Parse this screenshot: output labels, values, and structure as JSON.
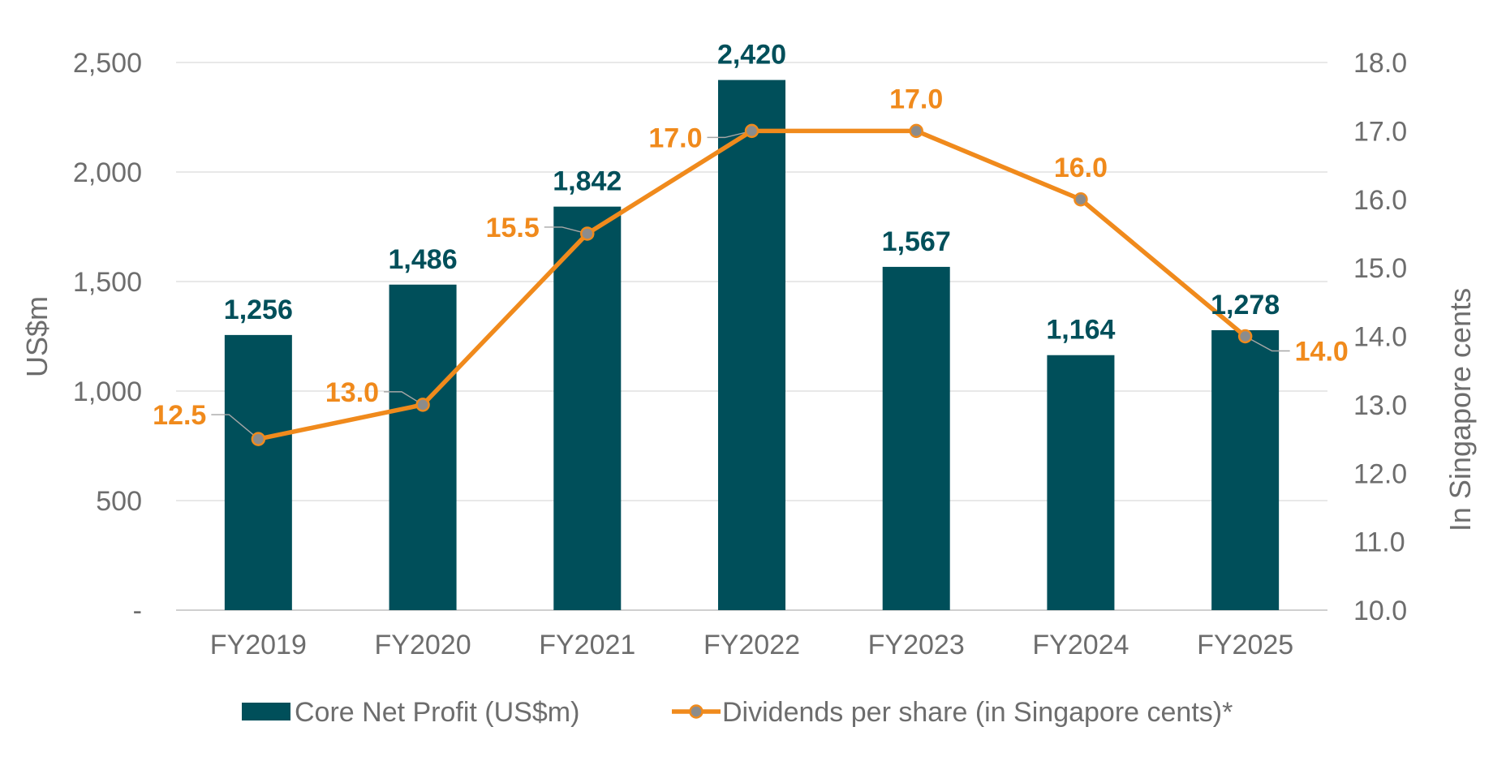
{
  "chart_data": {
    "type": "bar",
    "categories": [
      "FY2019",
      "FY2020",
      "FY2021",
      "FY2022",
      "FY2023",
      "FY2024",
      "FY2025"
    ],
    "series": [
      {
        "name": "Core Net Profit (US$m)",
        "type": "bar",
        "axis": "left",
        "color": "#004f5a",
        "values": [
          1256,
          1486,
          1842,
          2420,
          1567,
          1164,
          1278
        ],
        "labels": [
          "1,256",
          "1,486",
          "1,842",
          "2,420",
          "1,567",
          "1,164",
          "1,278"
        ]
      },
      {
        "name": "Dividends per share (in Singapore cents)*",
        "type": "line",
        "axis": "right",
        "color": "#f08a1c",
        "marker_color": "#8c8c8c",
        "values": [
          12.5,
          13.0,
          15.5,
          17.0,
          17.0,
          16.0,
          14.0
        ],
        "labels": [
          "12.5",
          "13.0",
          "15.5",
          "17.0",
          "17.0",
          "16.0",
          "14.0"
        ]
      }
    ],
    "ylabel": "US$m",
    "ylabel_right": "In Singapore cents",
    "ylim": [
      0,
      2500
    ],
    "ylim_right": [
      10.0,
      18.0
    ],
    "yticks": [
      0,
      500,
      1000,
      1500,
      2000,
      2500
    ],
    "ytick_labels": [
      "-",
      "500",
      "1,000",
      "1,500",
      "2,000",
      "2,500"
    ],
    "yticks_right": [
      10.0,
      11.0,
      12.0,
      13.0,
      14.0,
      15.0,
      16.0,
      17.0,
      18.0
    ],
    "ytick_labels_right": [
      "10.0",
      "11.0",
      "12.0",
      "13.0",
      "14.0",
      "15.0",
      "16.0",
      "17.0",
      "18.0"
    ],
    "grid": true,
    "legend_position": "bottom"
  }
}
